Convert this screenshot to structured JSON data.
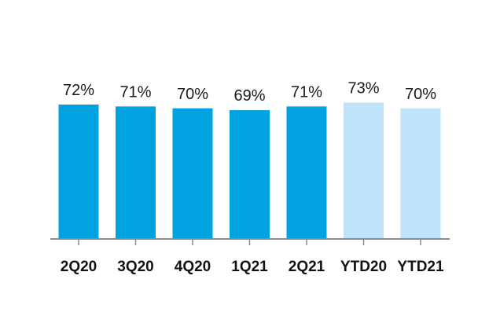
{
  "chart_data": {
    "type": "bar",
    "title": "",
    "xlabel": "",
    "ylabel": "",
    "categories": [
      "2Q20",
      "3Q20",
      "4Q20",
      "1Q21",
      "2Q21",
      "YTD20",
      "YTD21"
    ],
    "values": [
      72,
      71,
      70,
      69,
      71,
      73,
      70
    ],
    "data_labels": [
      "72%",
      "71%",
      "70%",
      "69%",
      "71%",
      "73%",
      "70%"
    ],
    "unit": "%",
    "ylim": [
      0,
      100
    ],
    "grid": false,
    "legend": "none",
    "colors": {
      "quarter": "#00A3E0",
      "ytd": "#BFE4FA",
      "axis": "#8a8a8a",
      "label": "#1a1a1a"
    },
    "bar_color_groups": [
      "quarter",
      "quarter",
      "quarter",
      "quarter",
      "quarter",
      "ytd",
      "ytd"
    ]
  }
}
